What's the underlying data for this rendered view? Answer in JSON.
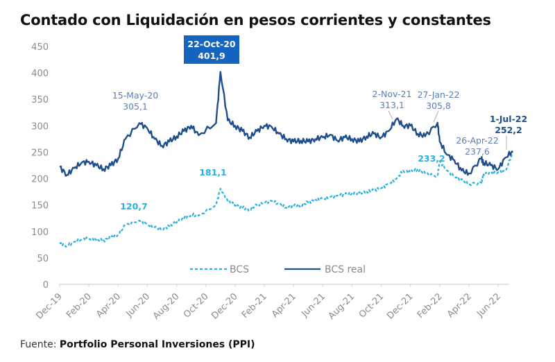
{
  "title": "Contado con Liquidación en pesos corrientes y constantes",
  "source": {
    "label": "Fuente:",
    "name": "Portfolio Personal Inversiones (PPI)"
  },
  "colors": {
    "bcs": "#2ab0e0",
    "bcs_real": "#1f4e8c",
    "highlight_box": "#1565c0",
    "axis": "#d9d9d9",
    "leader": "#b0b0b0"
  },
  "chart_data": {
    "type": "line",
    "title": "Contado con Liquidación en pesos corrientes y constantes",
    "xlabel": "",
    "ylabel": "",
    "ylim": [
      0,
      450
    ],
    "yticks": [
      0,
      50,
      100,
      150,
      200,
      250,
      300,
      350,
      400,
      450
    ],
    "x_tick_labels": [
      "Dec-19",
      "Feb-20",
      "Apr-20",
      "Jun-20",
      "Aug-20",
      "Oct-20",
      "Dec-20",
      "Feb-21",
      "Apr-21",
      "Jun-21",
      "Aug-21",
      "Oct-21",
      "Dec-21",
      "Feb-22",
      "Apr-22",
      "Jun-22"
    ],
    "x_unit": "months since Dec-19",
    "grid": false,
    "legend_position": "bottom-center",
    "x": [
      0,
      0.5,
      1,
      1.5,
      2,
      2.5,
      3,
      3.5,
      4,
      4.5,
      5.45,
      6,
      6.5,
      7,
      7.5,
      8,
      8.5,
      9,
      9.5,
      10.7,
      11,
      11.5,
      12,
      12.5,
      13,
      13.5,
      14,
      14.5,
      15,
      15.5,
      16,
      16.5,
      17,
      17.5,
      18,
      18.5,
      19,
      19.5,
      20,
      20.5,
      21,
      21.5,
      22,
      22.5,
      23.05,
      23.5,
      24,
      24.5,
      25,
      25.85,
      26,
      26.5,
      27,
      27.5,
      28,
      28.85,
      29,
      29.5,
      30,
      30.5,
      31
    ],
    "series": [
      {
        "name": "BCS",
        "style": "dashed",
        "values": [
          77,
          73,
          80,
          85,
          87,
          84,
          83,
          88,
          95,
          112,
          120.7,
          113,
          108,
          105,
          110,
          118,
          125,
          132,
          130,
          150,
          181.1,
          158,
          150,
          145,
          142,
          150,
          155,
          158,
          152,
          145,
          148,
          150,
          155,
          160,
          162,
          165,
          168,
          170,
          172,
          173,
          175,
          178,
          182,
          190,
          200,
          215,
          212,
          218,
          210,
          205,
          233.2,
          215,
          205,
          198,
          190,
          192,
          208,
          210,
          212,
          214,
          250
        ]
      },
      {
        "name": "BCS real",
        "style": "solid",
        "values": [
          222,
          207,
          220,
          230,
          232,
          225,
          218,
          225,
          238,
          275,
          305.1,
          295,
          275,
          262,
          270,
          280,
          290,
          300,
          282,
          305,
          401.9,
          310,
          300,
          290,
          278,
          290,
          300,
          298,
          285,
          275,
          270,
          272,
          270,
          275,
          278,
          283,
          272,
          278,
          275,
          270,
          280,
          285,
          278,
          290,
          313.1,
          300,
          300,
          285,
          280,
          305.8,
          270,
          245,
          235,
          215,
          210,
          237.6,
          230,
          225,
          218,
          240,
          252.2
        ]
      }
    ],
    "annotations": [
      {
        "series": "BCS real",
        "date": "15-May-20",
        "value": "305,1",
        "style": "normal"
      },
      {
        "series": "BCS real",
        "date": "22-Oct-20",
        "value": "401,9",
        "style": "box"
      },
      {
        "series": "BCS real",
        "date": "2-Nov-21",
        "value": "313,1",
        "style": "normal"
      },
      {
        "series": "BCS real",
        "date": "27-Jan-22",
        "value": "305,8",
        "style": "normal"
      },
      {
        "series": "BCS real",
        "date": "26-Apr-22",
        "value": "237,6",
        "style": "normal"
      },
      {
        "series": "BCS real",
        "date": "1-Jul-22",
        "value": "252,2",
        "style": "bold"
      },
      {
        "series": "BCS",
        "date": "",
        "value": "120,7",
        "style": "cyan"
      },
      {
        "series": "BCS",
        "date": "",
        "value": "181,1",
        "style": "cyan"
      },
      {
        "series": "BCS",
        "date": "",
        "value": "233,2",
        "style": "cyan"
      }
    ],
    "legend": [
      "BCS",
      "BCS real"
    ]
  }
}
